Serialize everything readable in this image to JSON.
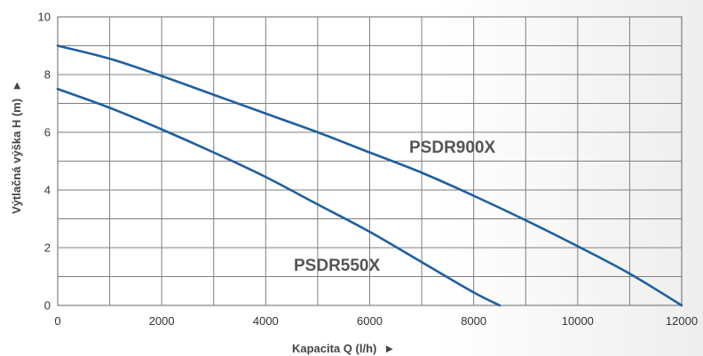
{
  "chart_data": {
    "type": "line",
    "title": "",
    "xlabel": "Kapacita Q (l/h)",
    "ylabel": "Výtlačná výška H (m)",
    "xlim": [
      0,
      12000
    ],
    "ylim": [
      0,
      10
    ],
    "xticks": [
      0,
      2000,
      4000,
      6000,
      8000,
      10000,
      12000
    ],
    "yticks": [
      0,
      2,
      4,
      6,
      8,
      10
    ],
    "x_tick_labels": [
      "0",
      "2000",
      "4000",
      "6000",
      "8000",
      "10000",
      "12000"
    ],
    "y_tick_labels": [
      "0",
      "2",
      "4",
      "6",
      "8",
      "10"
    ],
    "x_minor_step": 1000,
    "y_minor_step": 1,
    "grid": true,
    "line_color": "#1f5fa0",
    "grid_color": "#7f7f7f",
    "arrow_glyph": "►",
    "series": [
      {
        "name": "PSDR900X",
        "x": [
          0,
          1000,
          2000,
          3000,
          4000,
          5000,
          6000,
          7000,
          8000,
          9000,
          10000,
          11000,
          12000
        ],
        "y": [
          9.0,
          8.55,
          7.95,
          7.3,
          6.65,
          6.0,
          5.3,
          4.6,
          3.8,
          2.95,
          2.05,
          1.1,
          0.0
        ]
      },
      {
        "name": "PSDR550X",
        "x": [
          0,
          1000,
          2000,
          3000,
          4000,
          5000,
          6000,
          7000,
          8000,
          8500
        ],
        "y": [
          7.5,
          6.85,
          6.1,
          5.3,
          4.45,
          3.5,
          2.55,
          1.5,
          0.45,
          0.0
        ]
      }
    ]
  }
}
